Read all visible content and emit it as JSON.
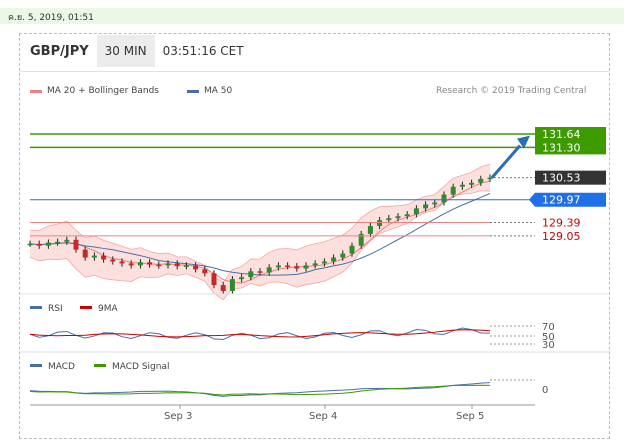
{
  "timestamp": "ค.ย. 5, 2019, 01:51",
  "header": {
    "symbol": "GBP/JPY",
    "timeframe": "30 MIN",
    "time": "03:51:16 CET"
  },
  "legend": {
    "ma20": "MA 20 + Bollinger Bands",
    "ma20_color": "#f08080",
    "ma50": "MA 50",
    "ma50_color": "#4a6fa5"
  },
  "research": "Research © 2019 Trading Central",
  "levels": [
    {
      "label": "131.64",
      "value": 131.64,
      "style": "target",
      "color": "#3d9b00"
    },
    {
      "label": "131.30",
      "value": 131.3,
      "style": "target",
      "color": "#3d9b00"
    },
    {
      "label": "130.53",
      "value": 130.53,
      "style": "current",
      "color": "#333333"
    },
    {
      "label": "129.97",
      "value": 129.97,
      "style": "pivot",
      "color": "#1e6fe8"
    },
    {
      "label": "129.39",
      "value": 129.39,
      "style": "support",
      "color": "#cc0000"
    },
    {
      "label": "129.05",
      "value": 129.05,
      "style": "support",
      "color": "#cc0000"
    }
  ],
  "rsi": {
    "label": "RSI",
    "color": "#4a6fa5",
    "ma_label": "9MA",
    "ma_color": "#cc0000",
    "ticks": [
      "70",
      "50",
      "30"
    ]
  },
  "macd": {
    "label": "MACD",
    "color": "#4a6fa5",
    "signal_label": "MACD Signal",
    "signal_color": "#3d9b00",
    "tick": "0"
  },
  "x_labels": [
    "Sep 3",
    "Sep 4",
    "Sep 5"
  ],
  "chart_data": {
    "type": "line",
    "title": "GBP/JPY 30 MIN",
    "x": [
      "Sep 3",
      "Sep 4",
      "Sep 5"
    ],
    "price_series": [
      128.85,
      128.8,
      128.88,
      128.9,
      128.95,
      128.7,
      128.5,
      128.55,
      128.45,
      128.4,
      128.35,
      128.3,
      128.38,
      128.32,
      128.3,
      128.35,
      128.28,
      128.3,
      128.2,
      128.1,
      127.8,
      127.65,
      127.95,
      128.0,
      128.15,
      128.12,
      128.25,
      128.3,
      128.28,
      128.22,
      128.3,
      128.35,
      128.4,
      128.5,
      128.6,
      128.8,
      129.1,
      129.3,
      129.45,
      129.5,
      129.55,
      129.6,
      129.75,
      129.85,
      129.9,
      130.1,
      130.3,
      130.35,
      130.4,
      130.5,
      130.53
    ],
    "targets": [
      131.64,
      131.3
    ],
    "pivot": 129.97,
    "supports": [
      129.39,
      129.05
    ],
    "last": 130.53,
    "series": [
      {
        "name": "MA 20 + Bollinger Bands",
        "color": "#f08080"
      },
      {
        "name": "MA 50",
        "color": "#4a6fa5"
      },
      {
        "name": "RSI",
        "color": "#4a6fa5"
      },
      {
        "name": "9MA",
        "color": "#cc0000"
      },
      {
        "name": "MACD",
        "color": "#4a6fa5"
      },
      {
        "name": "MACD Signal",
        "color": "#3d9b00"
      }
    ]
  }
}
